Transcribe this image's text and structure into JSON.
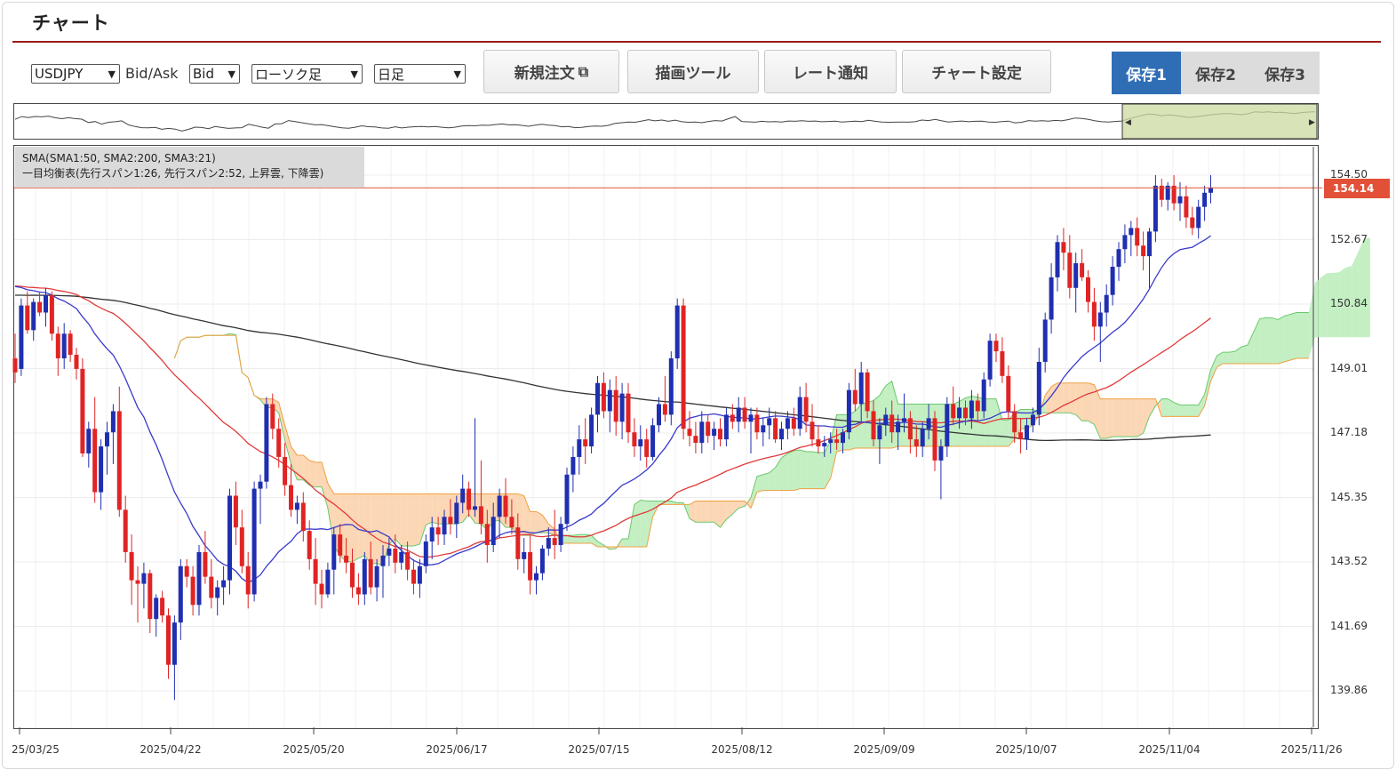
{
  "header": {
    "title": "チャート"
  },
  "toolbar": {
    "symbol": "USDJPY",
    "bidask_label": "Bid/Ask",
    "bidask": "Bid",
    "chart_type": "ローソク足",
    "period": "日足",
    "new_order": "新規注文",
    "drawing_tool": "描画ツール",
    "rate_alert": "レート通知",
    "chart_settings": "チャート設定",
    "save1": "保存1",
    "save2": "保存2",
    "save3": "保存3"
  },
  "legend": {
    "line1": "SMA(SMA1:50, SMA2:200, SMA3:21)",
    "line2": "一目均衡表(先行スパン1:26, 先行スパン2:52, 上昇雲, 下降雲)"
  },
  "current_price": "154.14",
  "colors": {
    "up": "#1f2fb0",
    "down": "#e02424",
    "sma21": "#3a3acc",
    "sma50": "#e03a3a",
    "sma200": "#333333",
    "cloud_bull": "#b9ecb9",
    "cloud_bear": "#fcd0a8",
    "accent": "#2f6eb5"
  },
  "chart_data": {
    "type": "candlestick",
    "y_ticks": [
      "154.50",
      "152.67",
      "150.84",
      "149.01",
      "147.18",
      "145.35",
      "143.52",
      "141.69",
      "139.86"
    ],
    "x_ticks": [
      "25/03/25",
      "2025/04/22",
      "2025/05/20",
      "2025/06/17",
      "2025/07/15",
      "2025/08/12",
      "2025/09/09",
      "2025/10/07",
      "2025/11/04",
      "2025/11/26"
    ],
    "ylim": [
      139.0,
      155.0
    ],
    "ohlc": [
      [
        149.3,
        150.0,
        148.6,
        148.9
      ],
      [
        149.0,
        151.0,
        148.8,
        150.8
      ],
      [
        150.8,
        151.2,
        150.0,
        150.1
      ],
      [
        150.1,
        151.0,
        149.8,
        150.9
      ],
      [
        150.9,
        151.2,
        150.5,
        150.6
      ],
      [
        150.6,
        151.3,
        150.2,
        151.1
      ],
      [
        151.1,
        151.2,
        149.8,
        150.0
      ],
      [
        150.0,
        150.2,
        148.8,
        149.3
      ],
      [
        149.3,
        150.3,
        149.0,
        150.0
      ],
      [
        150.0,
        150.1,
        149.2,
        149.4
      ],
      [
        149.4,
        149.6,
        148.7,
        149.0
      ],
      [
        149.0,
        149.3,
        146.5,
        146.6
      ],
      [
        146.6,
        147.5,
        146.2,
        147.3
      ],
      [
        147.3,
        148.2,
        145.2,
        145.5
      ],
      [
        145.5,
        147.0,
        145.0,
        146.8
      ],
      [
        146.8,
        147.5,
        146.0,
        147.2
      ],
      [
        147.2,
        148.0,
        146.3,
        147.8
      ],
      [
        147.8,
        148.5,
        144.8,
        145.0
      ],
      [
        145.0,
        145.4,
        143.5,
        143.8
      ],
      [
        143.8,
        144.3,
        142.3,
        143.0
      ],
      [
        143.0,
        143.4,
        141.8,
        142.9
      ],
      [
        142.9,
        143.5,
        142.2,
        143.2
      ],
      [
        143.2,
        143.3,
        141.5,
        141.9
      ],
      [
        141.9,
        142.6,
        141.4,
        142.5
      ],
      [
        142.5,
        142.7,
        141.8,
        142.0
      ],
      [
        142.0,
        142.2,
        140.2,
        140.6
      ],
      [
        140.6,
        142.0,
        139.6,
        141.8
      ],
      [
        141.8,
        143.6,
        141.3,
        143.4
      ],
      [
        143.4,
        143.6,
        142.8,
        143.1
      ],
      [
        143.1,
        143.4,
        142.0,
        142.3
      ],
      [
        142.3,
        144.0,
        142.0,
        143.8
      ],
      [
        143.8,
        144.4,
        142.9,
        143.1
      ],
      [
        143.1,
        143.6,
        142.2,
        142.5
      ],
      [
        142.5,
        143.0,
        142.0,
        142.8
      ],
      [
        142.8,
        143.4,
        142.3,
        143.0
      ],
      [
        143.0,
        145.6,
        142.6,
        145.4
      ],
      [
        145.4,
        145.8,
        144.0,
        144.5
      ],
      [
        144.5,
        145.0,
        143.2,
        143.4
      ],
      [
        143.4,
        143.8,
        142.2,
        142.6
      ],
      [
        142.6,
        145.8,
        142.4,
        145.6
      ],
      [
        145.6,
        146.0,
        144.6,
        145.8
      ],
      [
        145.8,
        148.2,
        145.6,
        148.0
      ],
      [
        148.0,
        148.3,
        147.0,
        147.3
      ],
      [
        147.3,
        147.6,
        146.2,
        146.5
      ],
      [
        146.5,
        146.9,
        145.4,
        145.7
      ],
      [
        145.7,
        146.3,
        144.8,
        145.0
      ],
      [
        145.0,
        145.4,
        144.6,
        145.2
      ],
      [
        145.2,
        145.5,
        144.1,
        144.4
      ],
      [
        144.4,
        144.7,
        143.3,
        143.6
      ],
      [
        143.6,
        144.2,
        142.3,
        142.9
      ],
      [
        142.9,
        143.3,
        142.2,
        142.6
      ],
      [
        142.6,
        143.5,
        142.5,
        143.3
      ],
      [
        143.3,
        144.5,
        142.6,
        144.3
      ],
      [
        144.3,
        144.6,
        143.5,
        143.7
      ],
      [
        143.7,
        144.2,
        143.2,
        143.5
      ],
      [
        143.5,
        143.9,
        142.5,
        142.8
      ],
      [
        142.8,
        143.2,
        142.3,
        142.6
      ],
      [
        142.6,
        143.8,
        142.3,
        143.6
      ],
      [
        143.6,
        144.1,
        142.6,
        142.8
      ],
      [
        142.8,
        143.6,
        142.4,
        143.4
      ],
      [
        143.4,
        144.0,
        142.5,
        143.7
      ],
      [
        143.7,
        144.2,
        143.4,
        143.9
      ],
      [
        143.9,
        144.3,
        143.2,
        143.5
      ],
      [
        143.5,
        144.0,
        143.3,
        143.8
      ],
      [
        143.8,
        144.1,
        143.0,
        143.3
      ],
      [
        143.3,
        143.6,
        142.6,
        142.9
      ],
      [
        142.9,
        143.6,
        142.5,
        143.4
      ],
      [
        143.4,
        144.3,
        143.2,
        144.1
      ],
      [
        144.1,
        144.8,
        143.6,
        144.5
      ],
      [
        144.5,
        144.8,
        144.0,
        144.3
      ],
      [
        144.3,
        145.0,
        144.0,
        144.8
      ],
      [
        144.8,
        145.3,
        144.3,
        144.6
      ],
      [
        144.6,
        145.4,
        144.2,
        145.2
      ],
      [
        145.2,
        146.0,
        144.9,
        145.6
      ],
      [
        145.6,
        145.8,
        144.8,
        145.0
      ],
      [
        145.0,
        147.6,
        144.8,
        145.1
      ],
      [
        145.1,
        146.4,
        144.3,
        144.6
      ],
      [
        144.6,
        145.0,
        143.5,
        144.0
      ],
      [
        144.0,
        145.2,
        143.8,
        144.8
      ],
      [
        144.8,
        145.6,
        144.2,
        145.4
      ],
      [
        145.4,
        145.9,
        144.6,
        144.8
      ],
      [
        144.8,
        145.3,
        144.3,
        144.5
      ],
      [
        144.5,
        144.9,
        143.3,
        143.6
      ],
      [
        143.6,
        144.2,
        143.2,
        143.8
      ],
      [
        143.8,
        144.3,
        142.6,
        143.0
      ],
      [
        143.0,
        143.4,
        142.6,
        143.2
      ],
      [
        143.2,
        144.0,
        143.0,
        143.9
      ],
      [
        143.9,
        144.5,
        143.7,
        144.2
      ],
      [
        144.2,
        145.0,
        143.6,
        144.0
      ],
      [
        144.0,
        144.8,
        143.8,
        144.6
      ],
      [
        144.6,
        146.2,
        144.4,
        146.0
      ],
      [
        146.0,
        146.8,
        145.5,
        146.5
      ],
      [
        146.5,
        147.4,
        146.0,
        147.0
      ],
      [
        147.0,
        147.6,
        146.3,
        146.8
      ],
      [
        146.8,
        147.9,
        146.6,
        147.7
      ],
      [
        147.7,
        148.8,
        147.2,
        148.6
      ],
      [
        148.6,
        148.9,
        147.6,
        147.8
      ],
      [
        147.8,
        148.7,
        147.2,
        148.4
      ],
      [
        148.4,
        148.8,
        147.1,
        147.5
      ],
      [
        147.5,
        148.6,
        147.0,
        148.3
      ],
      [
        148.3,
        148.6,
        146.9,
        147.2
      ],
      [
        147.2,
        147.6,
        146.5,
        146.8
      ],
      [
        146.8,
        147.4,
        146.4,
        147.0
      ],
      [
        147.0,
        147.3,
        146.2,
        146.5
      ],
      [
        146.5,
        147.6,
        146.4,
        147.4
      ],
      [
        147.4,
        148.2,
        147.2,
        148.0
      ],
      [
        148.0,
        148.8,
        147.5,
        147.7
      ],
      [
        147.7,
        149.5,
        147.4,
        149.3
      ],
      [
        149.3,
        151.0,
        149.0,
        150.8
      ],
      [
        150.8,
        151.0,
        147.0,
        147.3
      ],
      [
        147.3,
        147.8,
        146.8,
        147.1
      ],
      [
        147.1,
        147.5,
        146.6,
        146.9
      ],
      [
        146.9,
        147.8,
        146.6,
        147.5
      ],
      [
        147.5,
        147.7,
        146.9,
        147.1
      ],
      [
        147.1,
        147.5,
        146.7,
        147.3
      ],
      [
        147.3,
        147.6,
        146.8,
        147.0
      ],
      [
        147.0,
        147.9,
        146.8,
        147.7
      ],
      [
        147.7,
        148.0,
        147.3,
        147.5
      ],
      [
        147.5,
        148.2,
        147.2,
        147.9
      ],
      [
        147.9,
        148.2,
        147.3,
        147.5
      ],
      [
        147.5,
        147.9,
        146.6,
        147.7
      ],
      [
        147.7,
        147.9,
        147.0,
        147.2
      ],
      [
        147.2,
        147.6,
        146.8,
        147.4
      ],
      [
        147.4,
        147.9,
        147.0,
        147.6
      ],
      [
        147.6,
        147.8,
        146.9,
        147.0
      ],
      [
        147.0,
        147.5,
        146.7,
        147.3
      ],
      [
        147.3,
        147.8,
        147.0,
        147.6
      ],
      [
        147.6,
        147.9,
        147.1,
        147.3
      ],
      [
        147.3,
        148.5,
        147.1,
        148.2
      ],
      [
        148.2,
        148.6,
        147.2,
        147.5
      ],
      [
        147.5,
        148.0,
        146.8,
        147.0
      ],
      [
        147.0,
        147.4,
        146.6,
        146.8
      ],
      [
        146.8,
        147.1,
        146.5,
        146.9
      ],
      [
        146.9,
        147.2,
        146.6,
        147.0
      ],
      [
        147.0,
        147.3,
        146.7,
        146.9
      ],
      [
        146.9,
        147.3,
        146.6,
        147.2
      ],
      [
        147.2,
        148.6,
        147.0,
        148.4
      ],
      [
        148.4,
        149.0,
        147.8,
        148.0
      ],
      [
        148.0,
        149.2,
        147.5,
        148.9
      ],
      [
        148.9,
        149.0,
        147.6,
        147.8
      ],
      [
        147.8,
        148.1,
        146.8,
        147.0
      ],
      [
        147.0,
        147.6,
        146.3,
        147.4
      ],
      [
        147.4,
        147.9,
        147.1,
        147.7
      ],
      [
        147.7,
        148.1,
        146.9,
        147.2
      ],
      [
        147.2,
        147.7,
        146.7,
        147.5
      ],
      [
        147.5,
        148.3,
        147.2,
        147.6
      ],
      [
        147.6,
        147.8,
        146.6,
        147.0
      ],
      [
        147.0,
        147.4,
        146.5,
        146.8
      ],
      [
        146.8,
        147.5,
        146.5,
        147.3
      ],
      [
        147.3,
        148.0,
        147.0,
        147.6
      ],
      [
        147.6,
        147.8,
        146.1,
        146.4
      ],
      [
        146.4,
        147.0,
        145.3,
        146.8
      ],
      [
        146.8,
        148.2,
        146.5,
        148.0
      ],
      [
        148.0,
        148.5,
        147.4,
        147.6
      ],
      [
        147.6,
        148.2,
        147.3,
        147.9
      ],
      [
        147.9,
        148.1,
        147.4,
        147.6
      ],
      [
        147.6,
        148.4,
        147.3,
        148.1
      ],
      [
        148.1,
        148.3,
        147.5,
        147.8
      ],
      [
        147.8,
        148.9,
        147.6,
        148.7
      ],
      [
        148.7,
        150.0,
        148.5,
        149.8
      ],
      [
        149.8,
        150.0,
        149.2,
        149.5
      ],
      [
        149.5,
        149.9,
        148.6,
        148.8
      ],
      [
        148.8,
        149.1,
        147.6,
        147.8
      ],
      [
        147.8,
        148.0,
        146.9,
        147.2
      ],
      [
        147.2,
        147.6,
        146.6,
        147.0
      ],
      [
        147.0,
        147.6,
        146.7,
        147.4
      ],
      [
        147.4,
        147.9,
        147.2,
        147.7
      ],
      [
        147.7,
        149.6,
        147.4,
        149.2
      ],
      [
        149.2,
        150.6,
        148.9,
        150.4
      ],
      [
        150.4,
        152.0,
        150.0,
        151.6
      ],
      [
        151.6,
        152.8,
        151.2,
        152.6
      ],
      [
        152.6,
        153.0,
        151.8,
        152.3
      ],
      [
        152.3,
        152.8,
        151.0,
        151.3
      ],
      [
        151.3,
        152.3,
        150.6,
        152.0
      ],
      [
        152.0,
        152.4,
        151.5,
        151.6
      ],
      [
        151.6,
        151.8,
        150.6,
        150.9
      ],
      [
        150.9,
        151.3,
        149.8,
        150.2
      ],
      [
        150.2,
        150.9,
        149.2,
        150.6
      ],
      [
        150.6,
        151.4,
        150.2,
        151.1
      ],
      [
        151.1,
        152.2,
        150.8,
        151.9
      ],
      [
        151.9,
        152.6,
        151.5,
        152.4
      ],
      [
        152.4,
        153.1,
        152.0,
        152.8
      ],
      [
        152.8,
        153.2,
        152.2,
        153.0
      ],
      [
        153.0,
        153.3,
        152.2,
        152.5
      ],
      [
        152.5,
        152.9,
        151.8,
        152.2
      ],
      [
        152.2,
        153.0,
        151.3,
        152.9
      ],
      [
        152.9,
        154.5,
        152.6,
        154.2
      ],
      [
        154.2,
        154.4,
        153.6,
        153.8
      ],
      [
        153.8,
        154.3,
        153.5,
        154.2
      ],
      [
        154.2,
        154.5,
        153.5,
        153.7
      ],
      [
        153.7,
        154.3,
        153.2,
        153.9
      ],
      [
        153.9,
        154.2,
        153.0,
        153.3
      ],
      [
        153.3,
        153.6,
        152.8,
        153.0
      ],
      [
        153.0,
        153.8,
        152.7,
        153.6
      ],
      [
        153.6,
        154.2,
        153.2,
        154.0
      ],
      [
        154.0,
        154.5,
        153.7,
        154.14
      ]
    ]
  }
}
